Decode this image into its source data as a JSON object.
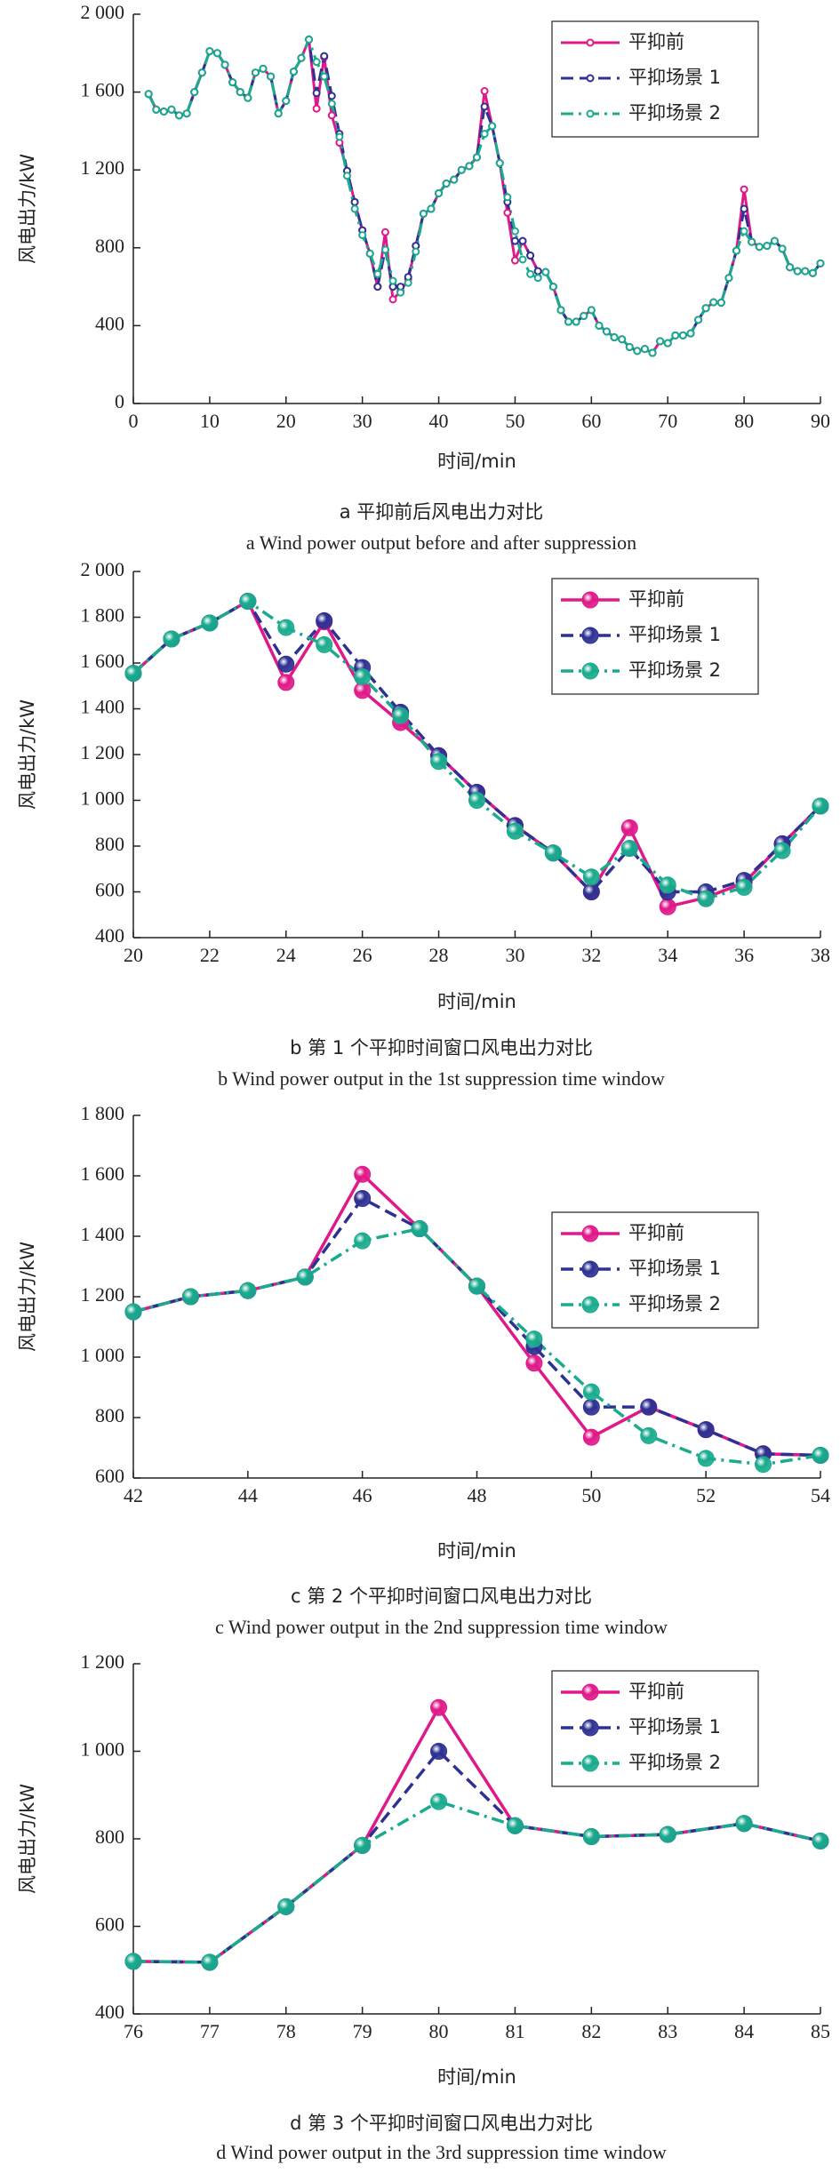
{
  "chart_data": [
    {
      "type": "line",
      "title": "a 平抑前后风电出力对比",
      "subtitle": "a Wind power output before and after suppression",
      "xlabel": "时间/min",
      "ylabel": "风电出力/kW",
      "legend": "upper right",
      "xlim": [
        0,
        90
      ],
      "xticks": [
        0,
        10,
        20,
        30,
        40,
        50,
        60,
        70,
        80,
        90
      ],
      "ylim": [
        0,
        2000
      ],
      "yticks": [
        0,
        400,
        800,
        {
          "value": 1200,
          "label": "1 200"
        },
        {
          "value": 1600,
          "label": "1 600"
        },
        {
          "value": 2000,
          "label": "2 000"
        }
      ],
      "x": [
        2,
        3,
        4,
        5,
        6,
        7,
        8,
        9,
        10,
        11,
        12,
        13,
        14,
        15,
        16,
        17,
        18,
        19,
        20,
        21,
        22,
        23,
        24,
        25,
        26,
        27,
        28,
        29,
        30,
        31,
        32,
        33,
        34,
        35,
        36,
        37,
        38,
        39,
        40,
        41,
        42,
        43,
        44,
        45,
        46,
        47,
        48,
        49,
        50,
        51,
        52,
        53,
        54,
        55,
        56,
        57,
        58,
        59,
        60,
        61,
        62,
        63,
        64,
        65,
        66,
        67,
        68,
        69,
        70,
        71,
        72,
        73,
        74,
        75,
        76,
        77,
        78,
        79,
        80,
        81,
        82,
        83,
        84,
        85,
        86,
        87,
        88,
        89,
        90
      ],
      "series": [
        {
          "name": "平抑前",
          "color": "#e0198a",
          "values": [
            1590,
            1510,
            1500,
            1510,
            1480,
            1490,
            1600,
            1700,
            1810,
            1800,
            1740,
            1650,
            1600,
            1570,
            1700,
            1720,
            1680,
            1490,
            1555,
            1705,
            1775,
            1870,
            1515,
            1780,
            1480,
            1340,
            1195,
            1035,
            890,
            770,
            600,
            880,
            535,
            575,
            640,
            810,
            975,
            1000,
            1080,
            1130,
            1150,
            1200,
            1220,
            1265,
            1605,
            1425,
            1235,
            980,
            735,
            835,
            760,
            680,
            675,
            600,
            480,
            420,
            420,
            450,
            480,
            400,
            370,
            340,
            330,
            290,
            270,
            280,
            260,
            320,
            310,
            350,
            350,
            360,
            430,
            490,
            520,
            518,
            645,
            785,
            1100,
            830,
            805,
            810,
            835,
            795,
            700,
            680,
            680,
            670,
            720
          ]
        },
        {
          "name": "平抑场景 1",
          "color": "#2e3192",
          "values": [
            1590,
            1510,
            1500,
            1510,
            1480,
            1490,
            1600,
            1700,
            1810,
            1800,
            1740,
            1650,
            1600,
            1570,
            1700,
            1720,
            1680,
            1490,
            1555,
            1705,
            1775,
            1870,
            1595,
            1785,
            1580,
            1385,
            1195,
            1035,
            890,
            770,
            600,
            790,
            600,
            600,
            650,
            810,
            975,
            1000,
            1080,
            1130,
            1150,
            1200,
            1220,
            1265,
            1525,
            1425,
            1235,
            1035,
            835,
            835,
            760,
            680,
            675,
            600,
            480,
            420,
            420,
            450,
            480,
            400,
            370,
            340,
            330,
            290,
            270,
            280,
            260,
            320,
            310,
            350,
            350,
            360,
            430,
            490,
            520,
            518,
            645,
            785,
            1000,
            830,
            805,
            810,
            835,
            795,
            700,
            680,
            680,
            670,
            720
          ]
        },
        {
          "name": "平抑场景 2",
          "color": "#1aab8e",
          "values": [
            1590,
            1510,
            1500,
            1510,
            1480,
            1490,
            1600,
            1700,
            1810,
            1800,
            1740,
            1650,
            1600,
            1570,
            1700,
            1720,
            1680,
            1490,
            1555,
            1705,
            1775,
            1870,
            1755,
            1680,
            1540,
            1370,
            1170,
            1000,
            865,
            770,
            665,
            790,
            630,
            570,
            620,
            780,
            975,
            1000,
            1080,
            1130,
            1150,
            1200,
            1220,
            1265,
            1385,
            1425,
            1235,
            1060,
            885,
            740,
            665,
            645,
            675,
            600,
            480,
            420,
            420,
            450,
            480,
            400,
            370,
            340,
            330,
            290,
            270,
            280,
            260,
            320,
            310,
            350,
            350,
            360,
            430,
            490,
            520,
            518,
            645,
            785,
            885,
            830,
            805,
            810,
            835,
            795,
            700,
            680,
            680,
            670,
            720
          ]
        }
      ]
    },
    {
      "type": "line",
      "title": "b 第 1 个平抑时间窗口风电出力对比",
      "subtitle": "b Wind power output in the 1st suppression time window",
      "xlabel": "时间/min",
      "ylabel": "风电出力/kW",
      "legend": "upper right",
      "xlim": [
        20,
        38
      ],
      "xticks": [
        20,
        22,
        24,
        26,
        28,
        30,
        32,
        34,
        36,
        38
      ],
      "ylim": [
        400,
        2000
      ],
      "yticks": [
        400,
        600,
        800,
        {
          "value": 1000,
          "label": "1 000"
        },
        {
          "value": 1200,
          "label": "1 200"
        },
        {
          "value": 1400,
          "label": "1 400"
        },
        {
          "value": 1600,
          "label": "1 600"
        },
        {
          "value": 1800,
          "label": "1 800"
        },
        {
          "value": 2000,
          "label": "2 000"
        }
      ],
      "x": [
        20,
        21,
        22,
        23,
        24,
        25,
        26,
        27,
        28,
        29,
        30,
        31,
        32,
        33,
        34,
        35,
        36,
        37,
        38
      ],
      "series": [
        {
          "name": "平抑前",
          "color": "#e0198a",
          "values": [
            1555,
            1705,
            1775,
            1870,
            1515,
            1780,
            1480,
            1340,
            1195,
            1035,
            890,
            770,
            600,
            880,
            535,
            575,
            640,
            810,
            975
          ]
        },
        {
          "name": "平抑场景 1",
          "color": "#2e3192",
          "values": [
            1555,
            1705,
            1775,
            1870,
            1595,
            1785,
            1580,
            1385,
            1195,
            1035,
            890,
            770,
            600,
            790,
            600,
            600,
            650,
            810,
            975
          ]
        },
        {
          "name": "平抑场景 2",
          "color": "#1aab8e",
          "values": [
            1555,
            1705,
            1775,
            1870,
            1755,
            1680,
            1540,
            1370,
            1170,
            1000,
            865,
            770,
            665,
            790,
            630,
            570,
            620,
            780,
            975
          ]
        }
      ]
    },
    {
      "type": "line",
      "title": "c 第 2 个平抑时间窗口风电出力对比",
      "subtitle": "c Wind power output in the 2nd suppression time window",
      "xlabel": "时间/min",
      "ylabel": "风电出力/kW",
      "legend": "center right",
      "xlim": [
        42,
        54
      ],
      "xticks": [
        42,
        44,
        46,
        48,
        50,
        52,
        54
      ],
      "ylim": [
        600,
        1800
      ],
      "yticks": [
        600,
        800,
        {
          "value": 1000,
          "label": "1 000"
        },
        {
          "value": 1200,
          "label": "1 200"
        },
        {
          "value": 1400,
          "label": "1 400"
        },
        {
          "value": 1600,
          "label": "1 600"
        },
        {
          "value": 1800,
          "label": "1 800"
        }
      ],
      "x": [
        42,
        43,
        44,
        45,
        46,
        47,
        48,
        49,
        50,
        51,
        52,
        53,
        54
      ],
      "series": [
        {
          "name": "平抑前",
          "color": "#e0198a",
          "values": [
            1150,
            1200,
            1220,
            1265,
            1605,
            1425,
            1235,
            980,
            735,
            835,
            760,
            680,
            675
          ]
        },
        {
          "name": "平抑场景 1",
          "color": "#2e3192",
          "values": [
            1150,
            1200,
            1220,
            1265,
            1525,
            1425,
            1235,
            1035,
            835,
            835,
            760,
            680,
            675
          ]
        },
        {
          "name": "平抑场景 2",
          "color": "#1aab8e",
          "values": [
            1150,
            1200,
            1220,
            1265,
            1385,
            1425,
            1235,
            1060,
            885,
            740,
            665,
            645,
            675
          ]
        }
      ]
    },
    {
      "type": "line",
      "title": "d 第 3 个平抑时间窗口风电出力对比",
      "subtitle": "d Wind power output in the 3rd suppression time window",
      "xlabel": "时间/min",
      "ylabel": "风电出力/kW",
      "legend": "upper right",
      "xlim": [
        76,
        85
      ],
      "xticks": [
        76,
        77,
        78,
        79,
        80,
        81,
        82,
        83,
        84,
        85
      ],
      "ylim": [
        400,
        1200
      ],
      "yticks": [
        400,
        600,
        800,
        {
          "value": 1000,
          "label": "1 000"
        },
        {
          "value": 1200,
          "label": "1 200"
        }
      ],
      "x": [
        76,
        77,
        78,
        79,
        80,
        81,
        82,
        83,
        84,
        85
      ],
      "series": [
        {
          "name": "平抑前",
          "color": "#e0198a",
          "values": [
            520,
            518,
            645,
            785,
            1100,
            830,
            805,
            810,
            835,
            795
          ]
        },
        {
          "name": "平抑场景 1",
          "color": "#2e3192",
          "values": [
            520,
            518,
            645,
            785,
            1000,
            830,
            805,
            810,
            835,
            795
          ]
        },
        {
          "name": "平抑场景 2",
          "color": "#1aab8e",
          "values": [
            520,
            518,
            645,
            785,
            885,
            830,
            805,
            810,
            835,
            795
          ]
        }
      ]
    }
  ]
}
